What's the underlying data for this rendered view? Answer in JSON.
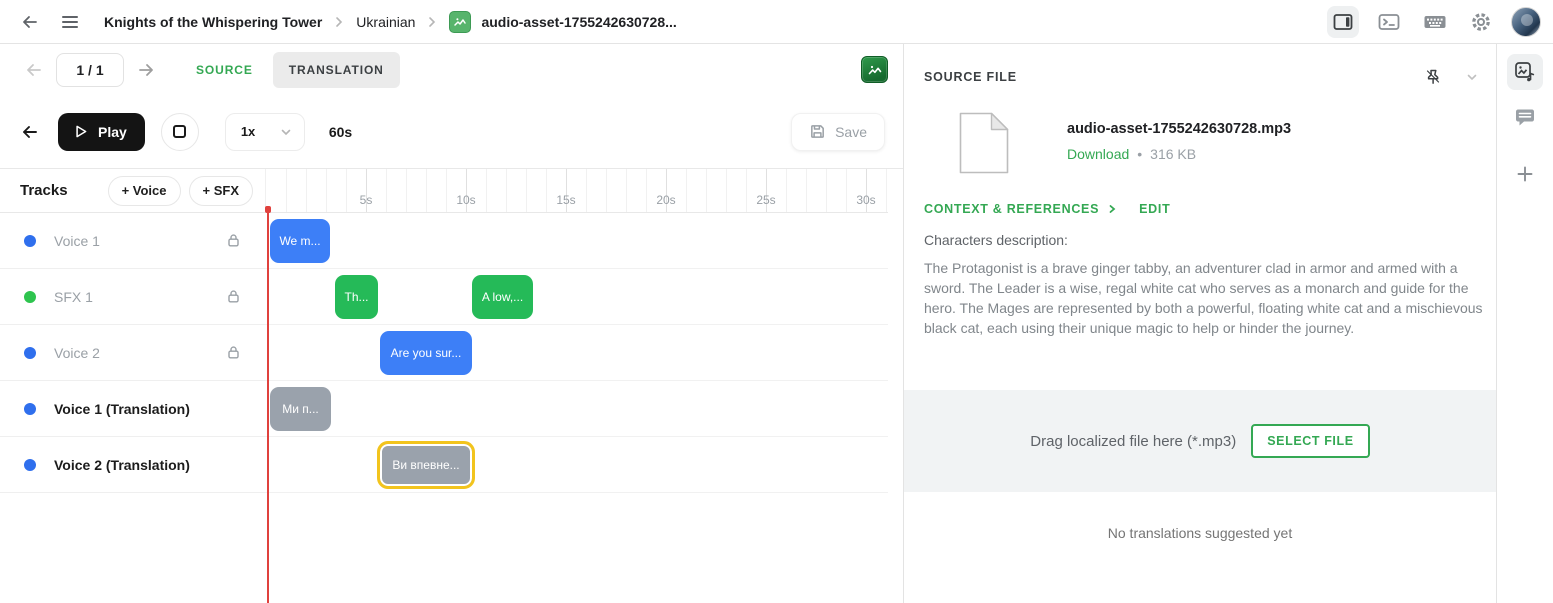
{
  "topbar": {
    "breadcrumb": [
      "Knights of the Whispering Tower",
      "Ukrainian",
      "audio-asset-1755242630728..."
    ]
  },
  "toolbar": {
    "page_indicator": "1 / 1",
    "source_tab": "SOURCE",
    "translation_tab": "TRANSLATION"
  },
  "player": {
    "play_label": "Play",
    "speed_value": "1x",
    "duration_label": "60s",
    "save_label": "Save"
  },
  "tracks_panel": {
    "title": "Tracks",
    "add_voice_label": "+ Voice",
    "add_sfx_label": "+ SFX"
  },
  "tracks": [
    {
      "name": "Voice 1",
      "dot_color": "#2f6fed",
      "locked": true,
      "emphasized": false
    },
    {
      "name": "SFX 1",
      "dot_color": "#2ec44e",
      "locked": true,
      "emphasized": false
    },
    {
      "name": "Voice 2",
      "dot_color": "#2f6fed",
      "locked": true,
      "emphasized": false
    },
    {
      "name": "Voice 1 (Translation)",
      "dot_color": "#2f6fed",
      "locked": false,
      "emphasized": true
    },
    {
      "name": "Voice 2 (Translation)",
      "dot_color": "#2f6fed",
      "locked": false,
      "emphasized": true
    }
  ],
  "timeline": {
    "ruler_labels": [
      "5s",
      "10s",
      "15s",
      "20s",
      "25s",
      "30s"
    ],
    "playhead_sec": 0.1,
    "clips": [
      {
        "track_index": 0,
        "label": "We m...",
        "start_sec": 0.25,
        "duration_sec": 3.0,
        "kind": "source_voice",
        "selected": false
      },
      {
        "track_index": 1,
        "label": "Th...",
        "start_sec": 3.5,
        "duration_sec": 2.15,
        "kind": "sfx",
        "selected": false
      },
      {
        "track_index": 1,
        "label": "A low,...",
        "start_sec": 10.35,
        "duration_sec": 3.05,
        "kind": "sfx",
        "selected": false
      },
      {
        "track_index": 2,
        "label": "Are you sur...",
        "start_sec": 5.75,
        "duration_sec": 4.6,
        "kind": "source_voice",
        "selected": false
      },
      {
        "track_index": 3,
        "label": "Ми п...",
        "start_sec": 0.25,
        "duration_sec": 3.05,
        "kind": "translation",
        "selected": false
      },
      {
        "track_index": 4,
        "label": "Ви впевне...",
        "start_sec": 5.6,
        "duration_sec": 4.9,
        "kind": "translation",
        "selected": true
      }
    ]
  },
  "source_file_panel": {
    "title": "SOURCE FILE",
    "filename": "audio-asset-1755242630728.mp3",
    "download_label": "Download",
    "separator": "•",
    "file_size": "316 KB",
    "context_label": "CONTEXT & REFERENCES",
    "edit_label": "EDIT",
    "description_label": "Characters description:",
    "description_text": "The Protagonist is a brave ginger tabby, an adventurer clad in armor and armed with a sword. The Leader is a wise, regal white cat who serves as a monarch and guide for the hero. The Mages are represented by both a powerful, floating white cat and a mischievous black cat, each using their unique magic to help or hinder the journey.",
    "drop_hint": "Drag localized file here (*.mp3)",
    "select_file_label": "SELECT FILE",
    "no_translations_text": "No translations suggested yet"
  },
  "colors": {
    "accent_green": "#34a853",
    "clip_colors": {
      "source_voice": "#3d7ff7",
      "sfx": "#25ba58",
      "translation": "#9aa2ac"
    },
    "selected_clip_outline": "#f2c41d",
    "playhead_red": "#e0413d"
  }
}
